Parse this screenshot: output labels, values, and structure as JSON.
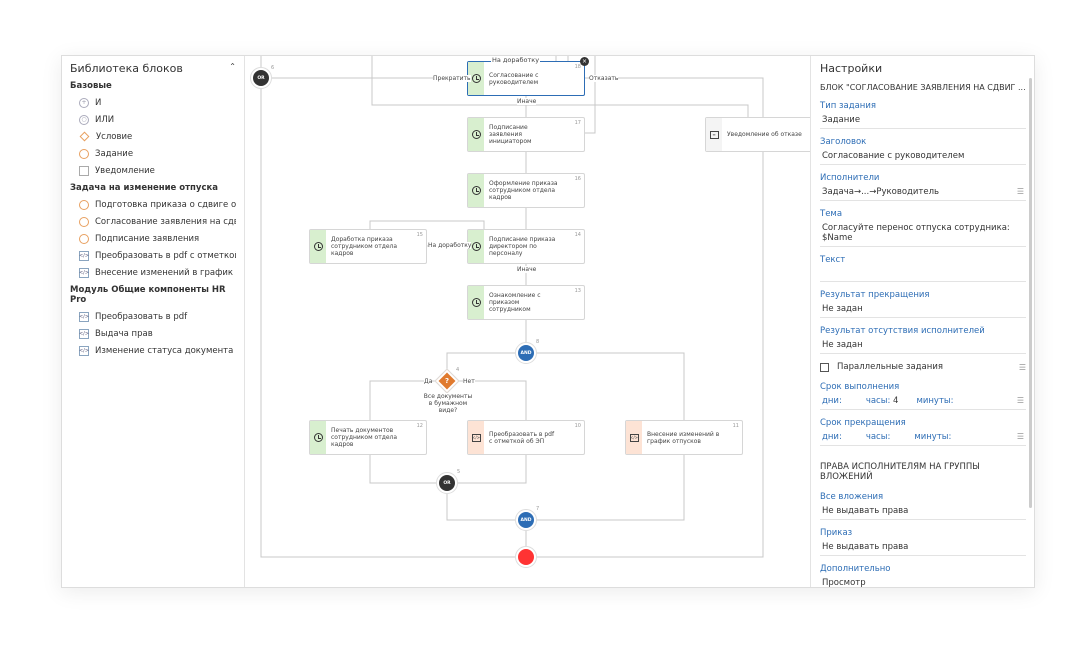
{
  "library": {
    "title": "Библиотека блоков",
    "groups": [
      {
        "label": "Базовые",
        "items": [
          {
            "label": "И",
            "icon": "and-icon"
          },
          {
            "label": "ИЛИ",
            "icon": "or-icon"
          },
          {
            "label": "Условие",
            "icon": "condition-icon"
          },
          {
            "label": "Задание",
            "icon": "clock-icon"
          },
          {
            "label": "Уведомление",
            "icon": "document-icon"
          }
        ]
      },
      {
        "label": "Задача на изменение отпуска",
        "items": [
          {
            "label": "Подготовка приказа о сдвиге от...",
            "icon": "clock-icon"
          },
          {
            "label": "Согласование заявления на сдви...",
            "icon": "clock-icon"
          },
          {
            "label": "Подписание заявления",
            "icon": "clock-icon"
          },
          {
            "label": "Преобразовать в pdf с отметкой...",
            "icon": "code-icon"
          },
          {
            "label": "Внесение изменений в график о...",
            "icon": "code-icon"
          }
        ]
      },
      {
        "label": "Модуль Общие компоненты HR Pro",
        "items": [
          {
            "label": "Преобразовать в pdf",
            "icon": "code-icon"
          },
          {
            "label": "Выдача прав",
            "icon": "code-icon"
          },
          {
            "label": "Изменение статуса документа",
            "icon": "code-icon"
          }
        ]
      }
    ]
  },
  "canvas": {
    "nodes": {
      "n18": {
        "num": "18",
        "text": "Согласование с руководителем"
      },
      "n17": {
        "num": "17",
        "text": "Подписание заявления инициатором"
      },
      "n16": {
        "num": "16",
        "text": "Оформление приказа сотрудником отдела кадров"
      },
      "n15": {
        "num": "15",
        "text": "Доработка приказа сотрудником отдела кадров"
      },
      "n14": {
        "num": "14",
        "text": "Подписание приказа директором по персоналу"
      },
      "n13": {
        "num": "13",
        "text": "Ознакомление с приказом сотрудником"
      },
      "n12": {
        "num": "12",
        "text": "Печать документов сотрудником отдела кадров"
      },
      "n10": {
        "num": "10",
        "text": "Преобразовать в pdf с отметкой об ЭП"
      },
      "n11": {
        "num": "11",
        "text": "Внесение изменений в график отпусков"
      },
      "notify": {
        "text": "Уведомление об отказе"
      }
    },
    "gates": {
      "or6": {
        "label": "OR",
        "num": "6"
      },
      "and8": {
        "label": "AND",
        "num": "8"
      },
      "or5": {
        "label": "OR",
        "num": "5"
      },
      "and7": {
        "label": "AND",
        "num": "7"
      },
      "cond4": {
        "label": "?",
        "num": "4",
        "text": "Все документы в бумажном виде?"
      }
    },
    "edge_labels": {
      "stop": "Прекратить",
      "refuse": "Отказать",
      "else1": "Иначе",
      "rework": "На доработку",
      "else2": "Иначе",
      "yes": "Да",
      "no": "Нет",
      "rework_top": "На доработку"
    },
    "colors": {
      "task": "#d8efcf",
      "script": "#fde3d5",
      "selected": "#2d6db5",
      "end": "#f33",
      "and": "#2d6db5",
      "or": "#333",
      "condition": "#e07a2e"
    }
  },
  "settings": {
    "title": "Настройки",
    "block": "БЛОК \"СОГЛАСОВАНИЕ ЗАЯВЛЕНИЯ НА СДВИГ ...",
    "fields": [
      {
        "label": "Тип задания",
        "value": "Задание"
      },
      {
        "label": "Заголовок",
        "value": "Согласование с руководителем"
      },
      {
        "label": "Исполнители",
        "value": "Задача→...→Руководитель"
      },
      {
        "label": "Тема",
        "value": "Согласуйте перенос отпуска сотрудника: $Name"
      },
      {
        "label": "Текст",
        "value": ""
      },
      {
        "label": "Результат прекращения",
        "value": "Не задан"
      },
      {
        "label": "Результат отсутствия исполнителей",
        "value": "Не задан"
      }
    ],
    "parallel": {
      "label": "Параллельные задания",
      "checked": false
    },
    "deadline": {
      "label": "Срок выполнения",
      "days": "дни:",
      "hours": "часы:",
      "hours_value": "4",
      "minutes": "минуты:"
    },
    "stop_deadline": {
      "label": "Срок прекращения",
      "days": "дни:",
      "hours": "часы:",
      "minutes": "минуты:"
    },
    "rights_title": "ПРАВА ИСПОЛНИТЕЛЯМ НА ГРУППЫ ВЛОЖЕНИЙ",
    "rights": [
      {
        "label": "Все вложения",
        "value": "Не выдавать права"
      },
      {
        "label": "Приказ",
        "value": "Не выдавать права"
      },
      {
        "label": "Дополнительно",
        "value": "Просмотр"
      }
    ]
  }
}
